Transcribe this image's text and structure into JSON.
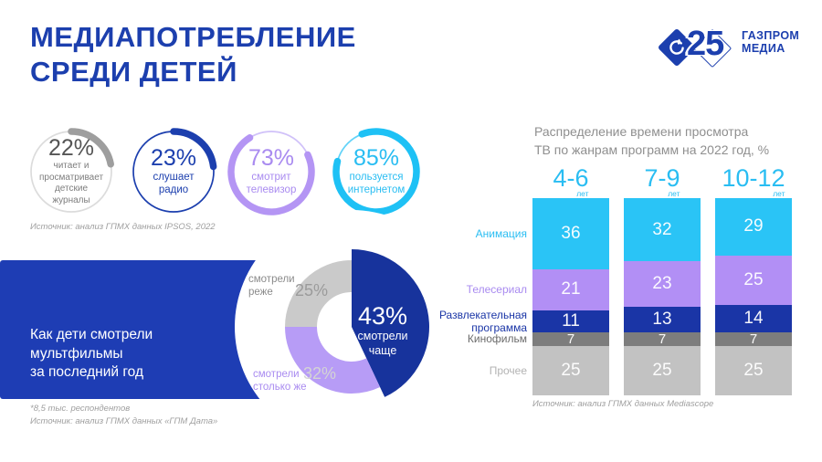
{
  "slide": {
    "title_line1": "МЕДИАПОТРЕБЛЕНИЕ",
    "title_line2": "СРЕДИ ДЕТЕЙ"
  },
  "logo": {
    "anniversary": "25",
    "brand_line1": "ГАЗПРОМ",
    "brand_line2": "МЕДИА",
    "color": "#1c3fae"
  },
  "rings_source": "Источник: анализ ГПМХ данных IPSOS, 2022",
  "panel": {
    "title_line1": "Как дети смотрели",
    "title_line2": "мультфильмы",
    "title_line3": "за последний год",
    "footnote_line1": "*8,5 тыс. респондентов",
    "footnote_line2": "Источник: анализ ГПМХ данных «ГПМ Дата»"
  },
  "tv_chart": {
    "title_line1": "Распределение времени просмотра",
    "title_line2": "ТВ по жанрам программ на 2022 год, %",
    "source": "Источник: анализ ГПМХ данных Mediascope"
  },
  "chart_data": [
    {
      "type": "donut-gauge-set",
      "items": [
        {
          "value": 22,
          "percent": "22%",
          "caption_lines": [
            "читает и",
            "просматривает",
            "детские",
            "журналы"
          ],
          "arc_color": "#9e9e9e",
          "track_color": "#dcdcdc",
          "percent_color": "#555555",
          "caption_color": "#7d7d7d"
        },
        {
          "value": 23,
          "percent": "23%",
          "caption_lines": [
            "слушает",
            "радио"
          ],
          "arc_color": "#1c3fae",
          "track_color": "#1c3fae",
          "percent_color": "#1c3fae",
          "caption_color": "#1c3fae"
        },
        {
          "value": 73,
          "percent": "73%",
          "caption_lines": [
            "смотрит",
            "телевизор"
          ],
          "arc_color": "#b495f4",
          "track_color": "#d0c1f9",
          "percent_color": "#a98bf0",
          "caption_color": "#a98bf0"
        },
        {
          "value": 85,
          "percent": "85%",
          "caption_lines": [
            "пользуется",
            "интернетом"
          ],
          "arc_color": "#1ec1f5",
          "track_color": "#63d3f8",
          "percent_color": "#29bdf2",
          "caption_color": "#29bdf2"
        }
      ],
      "source": "Источник: анализ ГПМХ данных IPSOS, 2022"
    },
    {
      "type": "pie",
      "title": "Как дети смотрели мультфильмы за последний год",
      "slices": [
        {
          "label": "смотрели чаще",
          "label_lines": [
            "смотрели",
            "чаще"
          ],
          "value": 43,
          "percent": "43%",
          "color": "#17339c",
          "percent_color": "#ffffff",
          "label_color": "#ffffff"
        },
        {
          "label": "смотрели столько же",
          "label_lines": [
            "смотрели",
            "столько же"
          ],
          "value": 32,
          "percent": "32%",
          "color": "#b79cf6",
          "percent_color": "#d4d4d4",
          "label_color": "#a98bf0"
        },
        {
          "label": "смотрели реже",
          "label_lines": [
            "смотрели",
            "реже"
          ],
          "value": 25,
          "percent": "25%",
          "color": "#cacaca",
          "percent_color": "#9b9b9b",
          "label_color": "#8b8b8b"
        }
      ]
    },
    {
      "type": "bar",
      "stacked": true,
      "title": "Распределение времени просмотра ТВ по жанрам программ на 2022 год, %",
      "categories": [
        {
          "label": "4-6",
          "unit": "лет"
        },
        {
          "label": "7-9",
          "unit": "лет"
        },
        {
          "label": "10-12",
          "unit": "лет"
        }
      ],
      "series": [
        {
          "name": "Анимация",
          "values": [
            36,
            32,
            29
          ],
          "color": "#2ac4f6",
          "label_color": "#29bdf2"
        },
        {
          "name": "Телесериал",
          "values": [
            21,
            23,
            25
          ],
          "color": "#b28ff5",
          "label_color": "#a98bf0"
        },
        {
          "name": "Развлекательная программа",
          "values": [
            11,
            13,
            14
          ],
          "color": "#1a35a6",
          "label_color": "#1a35a6"
        },
        {
          "name": "Кинофильм",
          "values": [
            7,
            7,
            7
          ],
          "color": "#7d7d7d",
          "label_color": "#6b6b6b"
        },
        {
          "name": "Прочее",
          "values": [
            25,
            25,
            25
          ],
          "color": "#c2c2c2",
          "label_color": "#b3b3b3"
        }
      ],
      "ylim": [
        0,
        100
      ],
      "source": "Источник: анализ ГПМХ данных Mediascope"
    }
  ]
}
